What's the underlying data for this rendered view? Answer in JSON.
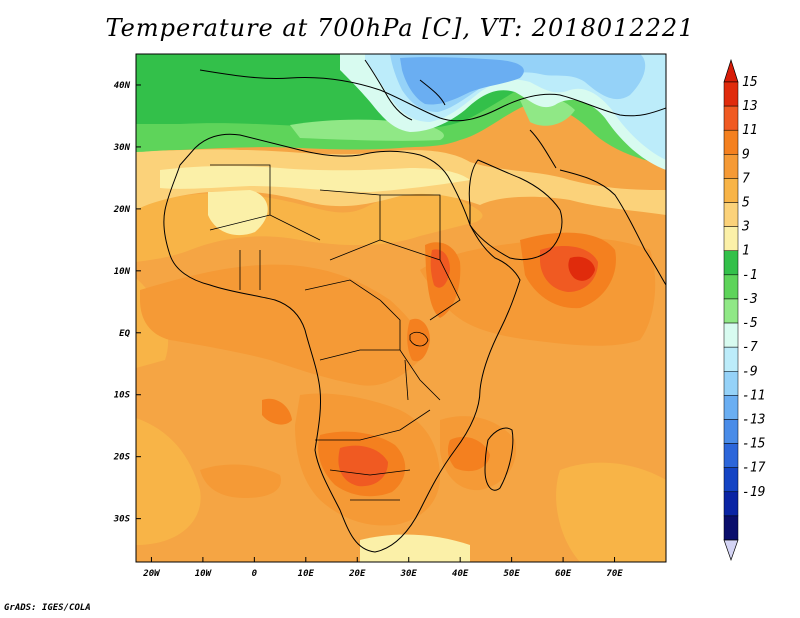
{
  "title": "Temperature at 700hPa [C], VT: 2018012221",
  "credit": "GrADS: IGES/COLA",
  "map": {
    "lon_range": [
      -23,
      80
    ],
    "lat_range": [
      -37,
      45
    ],
    "lon_ticks": [
      "20W",
      "10W",
      "0",
      "10E",
      "20E",
      "30E",
      "40E",
      "50E",
      "60E",
      "70E"
    ],
    "lat_ticks": [
      "40N",
      "30N",
      "20N",
      "10N",
      "EQ",
      "10S",
      "20S",
      "30S"
    ],
    "background_color": "#f5a544"
  },
  "colorbar": {
    "labels": [
      "15",
      "13",
      "11",
      "9",
      "7",
      "5",
      "3",
      "1",
      "-1",
      "-3",
      "-5",
      "-7",
      "-9",
      "-11",
      "-13",
      "-15",
      "-17",
      "-19"
    ],
    "colors": [
      "#e02b0c",
      "#f05a22",
      "#f4801f",
      "#f59a36",
      "#f8b447",
      "#fbd27a",
      "#fbf0a8",
      "#33c04a",
      "#5ed45a",
      "#90e886",
      "#d8fbf0",
      "#bcecfa",
      "#95d2f8",
      "#6aaef2",
      "#4a8ce8",
      "#2c66da",
      "#1444c4",
      "#0a24a4",
      "#0a0e6c"
    ],
    "top_arrow_color": "#d81c08",
    "bottom_arrow_color": "#d4d4f4"
  }
}
